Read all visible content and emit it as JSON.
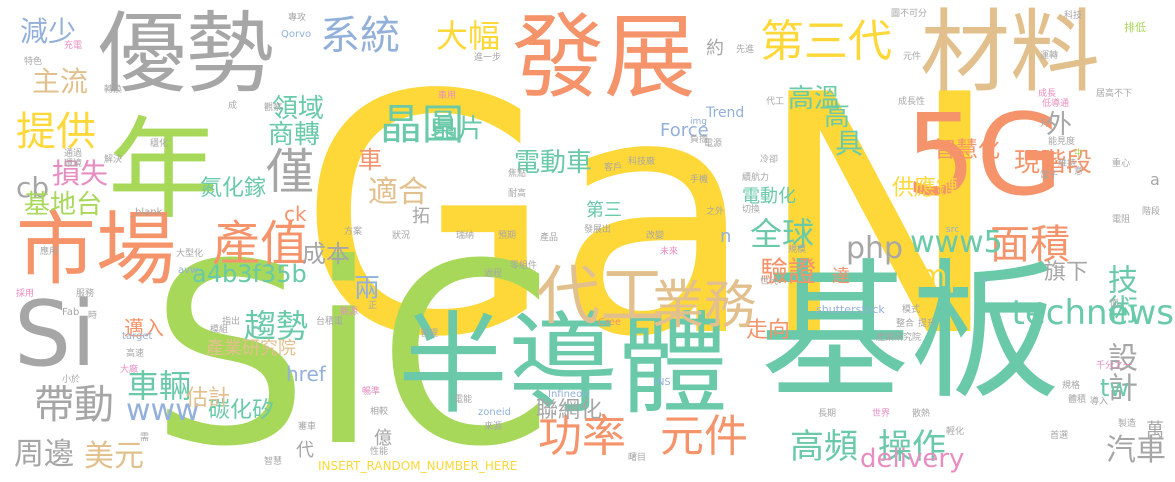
{
  "palette": {
    "yellow": "#fed839",
    "green": "#a8d85a",
    "teal": "#69c9a8",
    "orange": "#f5936a",
    "tan": "#e2c08e",
    "gray": "#a6a6a6",
    "blue": "#92b0d9",
    "pink": "#e88dc1",
    "sage": "#9fd0a0"
  },
  "words": [
    {
      "text": "GaN",
      "color": "yellow"
    },
    {
      "text": "SiC",
      "color": "green"
    },
    {
      "text": "基板",
      "color": "teal"
    },
    {
      "text": "半導體",
      "color": "teal"
    },
    {
      "text": "發展",
      "color": "orange"
    },
    {
      "text": "優勢",
      "color": "gray"
    },
    {
      "text": "材料",
      "color": "tan"
    },
    {
      "text": "年",
      "color": "green"
    },
    {
      "text": "5G",
      "color": "orange"
    },
    {
      "text": "市場",
      "color": "orange"
    },
    {
      "text": "Si",
      "color": "gray"
    },
    {
      "text": "代工",
      "color": "tan"
    },
    {
      "text": "業務",
      "color": "tan"
    },
    {
      "text": "晶圓",
      "color": "teal"
    },
    {
      "text": "第三代",
      "color": "yellow"
    },
    {
      "text": "系統",
      "color": "blue"
    },
    {
      "text": "產值",
      "color": "orange"
    },
    {
      "text": "功率",
      "color": "orange"
    },
    {
      "text": "元件",
      "color": "orange"
    },
    {
      "text": "面積",
      "color": "orange"
    },
    {
      "text": "提供",
      "color": "yellow"
    },
    {
      "text": "帶動",
      "color": "gray"
    },
    {
      "text": "僅",
      "color": "gray"
    },
    {
      "text": "全球",
      "color": "teal"
    },
    {
      "text": "大幅",
      "color": "yellow"
    },
    {
      "text": "高頻",
      "color": "teal"
    },
    {
      "text": "操作",
      "color": "teal"
    },
    {
      "text": "technews",
      "color": "teal"
    },
    {
      "text": "delivery",
      "color": "pink"
    },
    {
      "text": "www5",
      "color": "teal"
    },
    {
      "text": "驗證",
      "color": "orange"
    },
    {
      "text": "技術",
      "color": "teal"
    },
    {
      "text": "趨勢",
      "color": "teal"
    },
    {
      "text": "車輛",
      "color": "teal"
    },
    {
      "text": "設計",
      "color": "gray"
    },
    {
      "text": "汽車",
      "color": "gray"
    },
    {
      "text": "php",
      "color": "gray"
    },
    {
      "text": "amp",
      "color": "yellow"
    },
    {
      "text": "周邊",
      "color": "gray"
    },
    {
      "text": "美元",
      "color": "tan"
    },
    {
      "text": "www",
      "color": "blue"
    },
    {
      "text": "損失",
      "color": "pink"
    },
    {
      "text": "cb",
      "color": "gray"
    },
    {
      "text": "主流",
      "color": "tan"
    },
    {
      "text": "減少",
      "color": "blue"
    },
    {
      "text": "基地台",
      "color": "green"
    },
    {
      "text": "適合",
      "color": "tan"
    },
    {
      "text": "電動車",
      "color": "teal"
    },
    {
      "text": "現階段",
      "color": "orange"
    },
    {
      "text": "智慧化",
      "color": "orange"
    },
    {
      "text": "供應鏈",
      "color": "yellow"
    },
    {
      "text": "晶片",
      "color": "teal"
    },
    {
      "text": "領域",
      "color": "teal"
    },
    {
      "text": "商轉",
      "color": "teal"
    },
    {
      "text": "高溫",
      "color": "teal"
    },
    {
      "text": "高",
      "color": "teal"
    },
    {
      "text": "具",
      "color": "teal"
    },
    {
      "text": "外",
      "color": "gray"
    },
    {
      "text": "成本",
      "color": "gray"
    },
    {
      "text": "a4b3f35b",
      "color": "teal"
    },
    {
      "text": "氮化鎵",
      "color": "teal"
    },
    {
      "text": "車",
      "color": "orange"
    },
    {
      "text": "兩",
      "color": "blue"
    },
    {
      "text": "tw",
      "color": "teal"
    },
    {
      "text": "聯網化",
      "color": "gray"
    },
    {
      "text": "旗下",
      "color": "gray"
    },
    {
      "text": "走向",
      "color": "orange"
    },
    {
      "text": "碳化矽",
      "color": "teal"
    },
    {
      "text": "估計",
      "color": "tan"
    },
    {
      "text": "邁入",
      "color": "orange"
    },
    {
      "text": "產業研究院",
      "color": "tan"
    },
    {
      "text": "href",
      "color": "blue"
    },
    {
      "text": "ck",
      "color": "orange"
    },
    {
      "text": "n",
      "color": "blue"
    },
    {
      "text": "Force",
      "color": "blue"
    },
    {
      "text": "Trend",
      "color": "blue"
    },
    {
      "text": "約",
      "color": "gray"
    },
    {
      "text": "電動化",
      "color": "teal"
    },
    {
      "text": "第三",
      "color": "teal"
    },
    {
      "text": "達",
      "color": "orange"
    },
    {
      "text": "拓",
      "color": "gray"
    },
    {
      "text": "億",
      "color": "gray"
    },
    {
      "text": "代",
      "color": "gray"
    },
    {
      "text": "萬",
      "color": "gray"
    },
    {
      "text": "a",
      "color": "gray"
    },
    {
      "text": "INSERT_RANDOM_NUMBER_HERE",
      "color": "yellow"
    },
    {
      "text": "shutterstock",
      "color": "blue"
    },
    {
      "text": "zoneid",
      "color": "blue"
    },
    {
      "text": "Infineon",
      "color": "blue"
    },
    {
      "text": "Qorvo",
      "color": "blue"
    },
    {
      "text": "Cree",
      "color": "orange"
    },
    {
      "text": "target",
      "color": "blue"
    },
    {
      "text": "_blank",
      "color": "gray"
    },
    {
      "text": "img",
      "color": "blue"
    },
    {
      "text": "avw",
      "color": "blue"
    },
    {
      "text": "Fab",
      "color": "gray"
    },
    {
      "text": "src",
      "color": "blue"
    },
    {
      "text": "INS",
      "color": "blue"
    },
    {
      "text": "圖不可分",
      "color": "gray"
    },
    {
      "text": "科技",
      "color": "gray"
    },
    {
      "text": "排低",
      "color": "green"
    },
    {
      "text": "運轉",
      "color": "gray"
    },
    {
      "text": "元件",
      "color": "gray"
    },
    {
      "text": "成長",
      "color": "pink"
    },
    {
      "text": "低導通",
      "color": "pink"
    },
    {
      "text": "居高不下",
      "color": "gray"
    },
    {
      "text": "成長性",
      "color": "gray"
    },
    {
      "text": "能見度",
      "color": "gray"
    },
    {
      "text": "重心",
      "color": "gray"
    },
    {
      "text": "階段",
      "color": "gray"
    },
    {
      "text": "電阻",
      "color": "gray"
    },
    {
      "text": "產業研究院",
      "color": "gray"
    },
    {
      "text": "整合",
      "color": "gray"
    },
    {
      "text": "提升",
      "color": "gray"
    },
    {
      "text": "模式",
      "color": "gray"
    },
    {
      "text": "千分之一",
      "color": "pink"
    },
    {
      "text": "規格",
      "color": "gray"
    },
    {
      "text": "導入",
      "color": "gray"
    },
    {
      "text": "製造",
      "color": "gray"
    },
    {
      "text": "體積",
      "color": "gray"
    },
    {
      "text": "散熱",
      "color": "gray"
    },
    {
      "text": "長期",
      "color": "gray"
    },
    {
      "text": "世界",
      "color": "pink"
    },
    {
      "text": "首選",
      "color": "gray"
    },
    {
      "text": "輕化",
      "color": "gray"
    },
    {
      "text": "電子",
      "color": "gray"
    },
    {
      "text": "電能",
      "color": "gray"
    },
    {
      "text": "相較",
      "color": "gray"
    },
    {
      "text": "來源",
      "color": "gray"
    },
    {
      "text": "曙目",
      "color": "gray"
    },
    {
      "text": "性能",
      "color": "gray"
    },
    {
      "text": "智慧",
      "color": "gray"
    },
    {
      "text": "需",
      "color": "gray"
    },
    {
      "text": "審車",
      "color": "gray"
    },
    {
      "text": "暢準",
      "color": "pink"
    },
    {
      "text": "產品",
      "color": "gray"
    },
    {
      "text": "管理",
      "color": "gray"
    },
    {
      "text": "能源",
      "color": "pink"
    },
    {
      "text": "台積電",
      "color": "gray"
    },
    {
      "text": "模組",
      "color": "gray"
    },
    {
      "text": "指出",
      "color": "gray"
    },
    {
      "text": "高速",
      "color": "gray"
    },
    {
      "text": "小於",
      "color": "gray"
    },
    {
      "text": "大廠",
      "color": "pink"
    },
    {
      "text": "服務",
      "color": "gray"
    },
    {
      "text": "採用",
      "color": "pink"
    },
    {
      "text": "應用",
      "color": "gray"
    },
    {
      "text": "大型化",
      "color": "gray"
    },
    {
      "text": "方案",
      "color": "gray"
    },
    {
      "text": "狀況",
      "color": "gray"
    },
    {
      "text": "瑞納",
      "color": "gray"
    },
    {
      "text": "預期",
      "color": "gray"
    },
    {
      "text": "發展出",
      "color": "gray"
    },
    {
      "text": "改變",
      "color": "gray"
    },
    {
      "text": "過程",
      "color": "gray"
    },
    {
      "text": "零組件",
      "color": "gray"
    },
    {
      "text": "未來",
      "color": "pink"
    },
    {
      "text": "規模",
      "color": "gray"
    },
    {
      "text": "世代",
      "color": "gray"
    },
    {
      "text": "耐高",
      "color": "gray"
    },
    {
      "text": "焦點",
      "color": "gray"
    },
    {
      "text": "科技廠",
      "color": "gray"
    },
    {
      "text": "手機",
      "color": "gray"
    },
    {
      "text": "切換",
      "color": "gray"
    },
    {
      "text": "之外",
      "color": "gray"
    },
    {
      "text": "冷卻",
      "color": "gray"
    },
    {
      "text": "續航力",
      "color": "gray"
    },
    {
      "text": "客戶",
      "color": "gray"
    },
    {
      "text": "電源",
      "color": "gray"
    },
    {
      "text": "代工",
      "color": "gray"
    },
    {
      "text": "負擔",
      "color": "gray"
    },
    {
      "text": "車用",
      "color": "pink"
    },
    {
      "text": "觀察",
      "color": "gray"
    },
    {
      "text": "成",
      "color": "gray"
    },
    {
      "text": "轉換",
      "color": "gray"
    },
    {
      "text": "充電",
      "color": "pink"
    },
    {
      "text": "特色",
      "color": "gray"
    },
    {
      "text": "專攻",
      "color": "gray"
    },
    {
      "text": "先進",
      "color": "gray"
    },
    {
      "text": "進一步",
      "color": "gray"
    },
    {
      "text": "穩化",
      "color": "gray"
    },
    {
      "text": "通過",
      "color": "gray"
    },
    {
      "text": "解決",
      "color": "gray"
    },
    {
      "text": "環境",
      "color": "gray"
    },
    {
      "text": "正",
      "color": "gray"
    },
    {
      "text": "時",
      "color": "gray"
    },
    {
      "text": "中",
      "color": "green"
    },
    {
      "text": "升",
      "color": "gray"
    },
    {
      "text": "面",
      "color": "gray"
    },
    {
      "text": "維持",
      "color": "gray"
    },
    {
      "text": "意",
      "color": "gray"
    },
    {
      "text": "x",
      "color": "blue"
    }
  ]
}
